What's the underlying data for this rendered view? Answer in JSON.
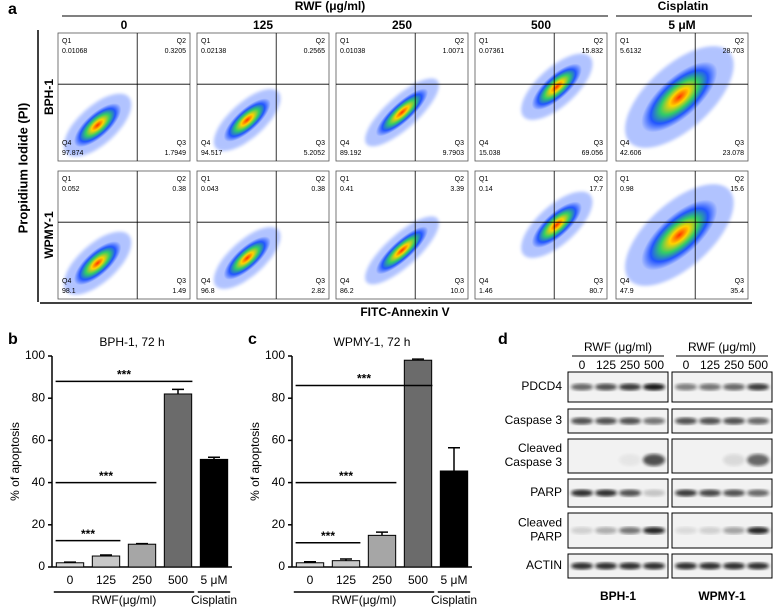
{
  "panel_labels": [
    "a",
    "b",
    "c",
    "d"
  ],
  "flow": {
    "header_group": "RWF (μg/ml)",
    "header_cisplatin": "Cisplatin",
    "columns": [
      "0",
      "125",
      "250",
      "500",
      "5 μM"
    ],
    "quadrant_names": [
      "Q1",
      "Q2",
      "Q3",
      "Q4"
    ],
    "y_label": "Propidium Iodide  (PI)",
    "x_label": "FITC-Annexin V",
    "rows": [
      {
        "label": "BPH-1",
        "plots": [
          {
            "q1": "0.01068",
            "q2": "0.3205",
            "q3": "1.7949",
            "q4": "97.874"
          },
          {
            "q1": "0.02138",
            "q2": "0.2565",
            "q3": "5.2052",
            "q4": "94.517"
          },
          {
            "q1": "0.01038",
            "q2": "1.0071",
            "q3": "9.7903",
            "q4": "89.192"
          },
          {
            "q1": "0.07361",
            "q2": "15.832",
            "q3": "69.056",
            "q4": "15.038"
          },
          {
            "q1": "5.6132",
            "q2": "28.703",
            "q3": "23.078",
            "q4": "42.606"
          }
        ]
      },
      {
        "label": "WPMY-1",
        "plots": [
          {
            "q1": "0.052",
            "q2": "0.38",
            "q3": "1.49",
            "q4": "98.1"
          },
          {
            "q1": "0.043",
            "q2": "0.38",
            "q3": "2.82",
            "q4": "96.8"
          },
          {
            "q1": "0.41",
            "q2": "3.39",
            "q3": "10.0",
            "q4": "86.2"
          },
          {
            "q1": "0.14",
            "q2": "17.7",
            "q3": "80.7",
            "q4": "1.46"
          },
          {
            "q1": "0.98",
            "q2": "15.6",
            "q3": "35.4",
            "q4": "47.9"
          }
        ]
      }
    ]
  },
  "chart_data": [
    {
      "type": "bar",
      "title": "BPH-1, 72 h",
      "y_label": "% of apoptosis",
      "categories": [
        "0",
        "125",
        "250",
        "500",
        "5 μM"
      ],
      "values": [
        2,
        5.2,
        10.8,
        82,
        51
      ],
      "errors": [
        0.3,
        0.5,
        0.3,
        2.2,
        1
      ],
      "colors": [
        "#d9d9d9",
        "#c8c8c8",
        "#a6a6a6",
        "#6b6b6b",
        "#000000"
      ],
      "ylim": [
        0,
        100
      ],
      "yticks": [
        0,
        20,
        40,
        60,
        80,
        100
      ],
      "groups": [
        {
          "label": "RWF(μg/ml)",
          "categories": [
            "0",
            "125",
            "250",
            "500"
          ]
        },
        {
          "label": "Cisplatin",
          "categories": [
            "5 μM"
          ]
        }
      ],
      "annotations": [
        {
          "label": "***",
          "from": "0",
          "to": "125",
          "y": 12.5
        },
        {
          "label": "***",
          "from": "0",
          "to": "250",
          "y": 40
        },
        {
          "label": "***",
          "from": "0",
          "to": "500",
          "y": 88
        }
      ]
    },
    {
      "type": "bar",
      "title": "WPMY-1, 72 h",
      "y_label": "% of apoptosis",
      "categories": [
        "0",
        "125",
        "250",
        "500",
        "5 μM"
      ],
      "values": [
        2,
        3,
        15,
        98,
        45.5
      ],
      "errors": [
        0.5,
        0.8,
        1.5,
        0.5,
        11
      ],
      "colors": [
        "#d9d9d9",
        "#c8c8c8",
        "#a6a6a6",
        "#6b6b6b",
        "#000000"
      ],
      "ylim": [
        0,
        100
      ],
      "yticks": [
        0,
        20,
        40,
        60,
        80,
        100
      ],
      "groups": [
        {
          "label": "RWF(μg/ml)",
          "categories": [
            "0",
            "125",
            "250",
            "500"
          ]
        },
        {
          "label": "Cisplatin",
          "categories": [
            "5 μM"
          ]
        }
      ],
      "annotations": [
        {
          "label": "***",
          "from": "0",
          "to": "125",
          "y": 11.5
        },
        {
          "label": "***",
          "from": "0",
          "to": "250",
          "y": 40
        },
        {
          "label": "***",
          "from": "0",
          "to": "500",
          "y": 86
        }
      ]
    }
  ],
  "blot": {
    "header": "RWF (μg/ml)",
    "lanes": [
      "0",
      "125",
      "250",
      "500"
    ],
    "proteins": [
      "PDCD4",
      "Caspase 3",
      "Cleaved\nCaspase 3",
      "PARP",
      "Cleaved\nPARP",
      "ACTIN"
    ],
    "cells": [
      "BPH-1",
      "WPMY-1"
    ]
  }
}
